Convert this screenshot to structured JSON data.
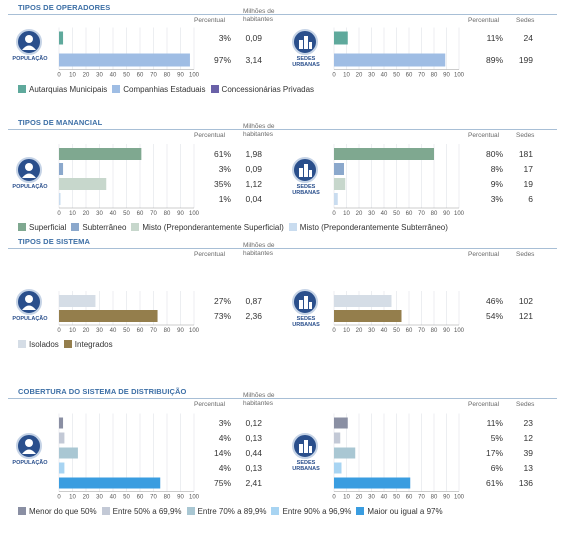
{
  "sections": [
    {
      "title": "TIPOS DE OPERADORES",
      "left_badge": "POPULAÇÃO",
      "right_badge_1": "SEDES",
      "right_badge_2": "URBANAS",
      "left_headers": [
        "Percentual",
        "Milhões de",
        "habitantes"
      ],
      "right_headers": [
        "Percentual",
        "Sedes"
      ],
      "legend": [
        {
          "label": "Autarquias Municipais",
          "color": "#5fa99c"
        },
        {
          "label": "Companhias Estaduais",
          "color": "#9fbde4"
        },
        {
          "label": "Concessionárias Privadas",
          "color": "#6a61a8"
        }
      ],
      "left_rows": [
        {
          "percent": "3%",
          "value": "0,09",
          "pct": 3,
          "color": "#5fa99c"
        },
        {
          "percent": "97%",
          "value": "3,14",
          "pct": 97,
          "color": "#9fbde4"
        }
      ],
      "right_rows": [
        {
          "percent": "11%",
          "value": "24",
          "pct": 11,
          "color": "#5fa99c"
        },
        {
          "percent": "89%",
          "value": "199",
          "pct": 89,
          "color": "#9fbde4"
        }
      ]
    },
    {
      "title": "TIPOS DE MANANCIAL",
      "left_badge": "POPULAÇÃO",
      "right_badge_1": "SEDES",
      "right_badge_2": "URBANAS",
      "left_headers": [
        "Percentual",
        "Milhões de",
        "habitantes"
      ],
      "right_headers": [
        "Percentual",
        "Sedes"
      ],
      "legend": [
        {
          "label": "Superficial",
          "color": "#7fa890"
        },
        {
          "label": "Subterrâneo",
          "color": "#8ba8cc"
        },
        {
          "label": "Misto (Preponderantemente Superficial)",
          "color": "#c7d7cc"
        },
        {
          "label": "Misto (Preponderantemente Subterrâneo)",
          "color": "#c9dcef"
        }
      ],
      "left_rows": [
        {
          "percent": "61%",
          "value": "1,98",
          "pct": 61,
          "color": "#7fa890"
        },
        {
          "percent": "3%",
          "value": "0,09",
          "pct": 3,
          "color": "#8ba8cc"
        },
        {
          "percent": "35%",
          "value": "1,12",
          "pct": 35,
          "color": "#c7d7cc"
        },
        {
          "percent": "1%",
          "value": "0,04",
          "pct": 1,
          "color": "#c9dcef"
        }
      ],
      "right_rows": [
        {
          "percent": "80%",
          "value": "181",
          "pct": 80,
          "color": "#7fa890"
        },
        {
          "percent": "8%",
          "value": "17",
          "pct": 8,
          "color": "#8ba8cc"
        },
        {
          "percent": "9%",
          "value": "19",
          "pct": 9,
          "color": "#c7d7cc"
        },
        {
          "percent": "3%",
          "value": "6",
          "pct": 3,
          "color": "#c9dcef"
        }
      ]
    },
    {
      "title": "TIPOS DE SISTEMA",
      "left_badge": "POPULAÇÃO",
      "right_badge_1": "SEDES",
      "right_badge_2": "URBANAS",
      "left_headers": [
        "Percentual",
        "Milhões de",
        "habitantes"
      ],
      "right_headers": [
        "Percentual",
        "Sedes"
      ],
      "legend": [
        {
          "label": "Isolados",
          "color": "#d5dde6"
        },
        {
          "label": "Integrados",
          "color": "#947e4c"
        }
      ],
      "left_rows": [
        {
          "percent": "27%",
          "value": "0,87",
          "pct": 27,
          "color": "#d5dde6"
        },
        {
          "percent": "73%",
          "value": "2,36",
          "pct": 73,
          "color": "#947e4c"
        }
      ],
      "right_rows": [
        {
          "percent": "46%",
          "value": "102",
          "pct": 46,
          "color": "#d5dde6"
        },
        {
          "percent": "54%",
          "value": "121",
          "pct": 54,
          "color": "#947e4c"
        }
      ]
    },
    {
      "title": "COBERTURA DO SISTEMA DE DISTRIBUIÇÃO",
      "left_badge": "POPULAÇÃO",
      "right_badge_1": "SEDES",
      "right_badge_2": "URBANAS",
      "left_headers": [
        "Percentual",
        "Milhões de",
        "habitantes"
      ],
      "right_headers": [
        "Percentual",
        "Sedes"
      ],
      "legend": [
        {
          "label": "Menor do que 50%",
          "color": "#8a8fa3"
        },
        {
          "label": "Entre 50% a 69,9%",
          "color": "#c3c9d6"
        },
        {
          "label": "Entre 70% a 89,9%",
          "color": "#a9c7d3"
        },
        {
          "label": "Entre 90% a 96,9%",
          "color": "#a8d4f2"
        },
        {
          "label": "Maior ou igual a 97%",
          "color": "#3a9de0"
        }
      ],
      "left_rows": [
        {
          "percent": "3%",
          "value": "0,12",
          "pct": 3,
          "color": "#8a8fa3"
        },
        {
          "percent": "4%",
          "value": "0,13",
          "pct": 4,
          "color": "#c3c9d6"
        },
        {
          "percent": "14%",
          "value": "0,44",
          "pct": 14,
          "color": "#a9c7d3"
        },
        {
          "percent": "4%",
          "value": "0,13",
          "pct": 4,
          "color": "#a8d4f2"
        },
        {
          "percent": "75%",
          "value": "2,41",
          "pct": 75,
          "color": "#3a9de0"
        }
      ],
      "right_rows": [
        {
          "percent": "11%",
          "value": "23",
          "pct": 11,
          "color": "#8a8fa3"
        },
        {
          "percent": "5%",
          "value": "12",
          "pct": 5,
          "color": "#c3c9d6"
        },
        {
          "percent": "17%",
          "value": "39",
          "pct": 17,
          "color": "#a9c7d3"
        },
        {
          "percent": "6%",
          "value": "13",
          "pct": 6,
          "color": "#a8d4f2"
        },
        {
          "percent": "61%",
          "value": "136",
          "pct": 61,
          "color": "#3a9de0"
        }
      ]
    }
  ],
  "axis_ticks": [
    "0",
    "10",
    "20",
    "30",
    "40",
    "50",
    "60",
    "70",
    "80",
    "90",
    "100"
  ],
  "chart_data": [
    {
      "type": "bar",
      "title": "TIPOS DE OPERADORES",
      "panel": "POPULAÇÃO",
      "categories": [
        "Autarquias Municipais",
        "Companhias Estaduais"
      ],
      "values": [
        3,
        97
      ],
      "secondary_values": [
        0.09,
        3.14
      ],
      "xlim": [
        0,
        100
      ]
    },
    {
      "type": "bar",
      "title": "TIPOS DE OPERADORES",
      "panel": "SEDES URBANAS",
      "categories": [
        "Autarquias Municipais",
        "Companhias Estaduais"
      ],
      "values": [
        11,
        89
      ],
      "secondary_values": [
        24,
        199
      ],
      "xlim": [
        0,
        100
      ]
    },
    {
      "type": "bar",
      "title": "TIPOS DE MANANCIAL",
      "panel": "POPULAÇÃO",
      "categories": [
        "Superficial",
        "Subterrâneo",
        "Misto (Preponderantemente Superficial)",
        "Misto (Preponderantemente Subterrâneo)"
      ],
      "values": [
        61,
        3,
        35,
        1
      ],
      "secondary_values": [
        1.98,
        0.09,
        1.12,
        0.04
      ],
      "xlim": [
        0,
        100
      ]
    },
    {
      "type": "bar",
      "title": "TIPOS DE MANANCIAL",
      "panel": "SEDES URBANAS",
      "categories": [
        "Superficial",
        "Subterrâneo",
        "Misto (Preponderantemente Superficial)",
        "Misto (Preponderantemente Subterrâneo)"
      ],
      "values": [
        80,
        8,
        9,
        3
      ],
      "secondary_values": [
        181,
        17,
        19,
        6
      ],
      "xlim": [
        0,
        100
      ]
    },
    {
      "type": "bar",
      "title": "TIPOS DE SISTEMA",
      "panel": "POPULAÇÃO",
      "categories": [
        "Isolados",
        "Integrados"
      ],
      "values": [
        27,
        73
      ],
      "secondary_values": [
        0.87,
        2.36
      ],
      "xlim": [
        0,
        100
      ]
    },
    {
      "type": "bar",
      "title": "TIPOS DE SISTEMA",
      "panel": "SEDES URBANAS",
      "categories": [
        "Isolados",
        "Integrados"
      ],
      "values": [
        46,
        54
      ],
      "secondary_values": [
        102,
        121
      ],
      "xlim": [
        0,
        100
      ]
    },
    {
      "type": "bar",
      "title": "COBERTURA DO SISTEMA DE DISTRIBUIÇÃO",
      "panel": "POPULAÇÃO",
      "categories": [
        "Menor do que 50%",
        "Entre 50% a 69,9%",
        "Entre 70% a 89,9%",
        "Entre 90% a 96,9%",
        "Maior ou igual a 97%"
      ],
      "values": [
        3,
        4,
        14,
        4,
        75
      ],
      "secondary_values": [
        0.12,
        0.13,
        0.44,
        0.13,
        2.41
      ],
      "xlim": [
        0,
        100
      ]
    },
    {
      "type": "bar",
      "title": "COBERTURA DO SISTEMA DE DISTRIBUIÇÃO",
      "panel": "SEDES URBANAS",
      "categories": [
        "Menor do que 50%",
        "Entre 50% a 69,9%",
        "Entre 70% a 89,9%",
        "Entre 90% a 96,9%",
        "Maior ou igual a 97%"
      ],
      "values": [
        11,
        5,
        17,
        6,
        61
      ],
      "secondary_values": [
        23,
        12,
        39,
        13,
        136
      ],
      "xlim": [
        0,
        100
      ]
    }
  ]
}
